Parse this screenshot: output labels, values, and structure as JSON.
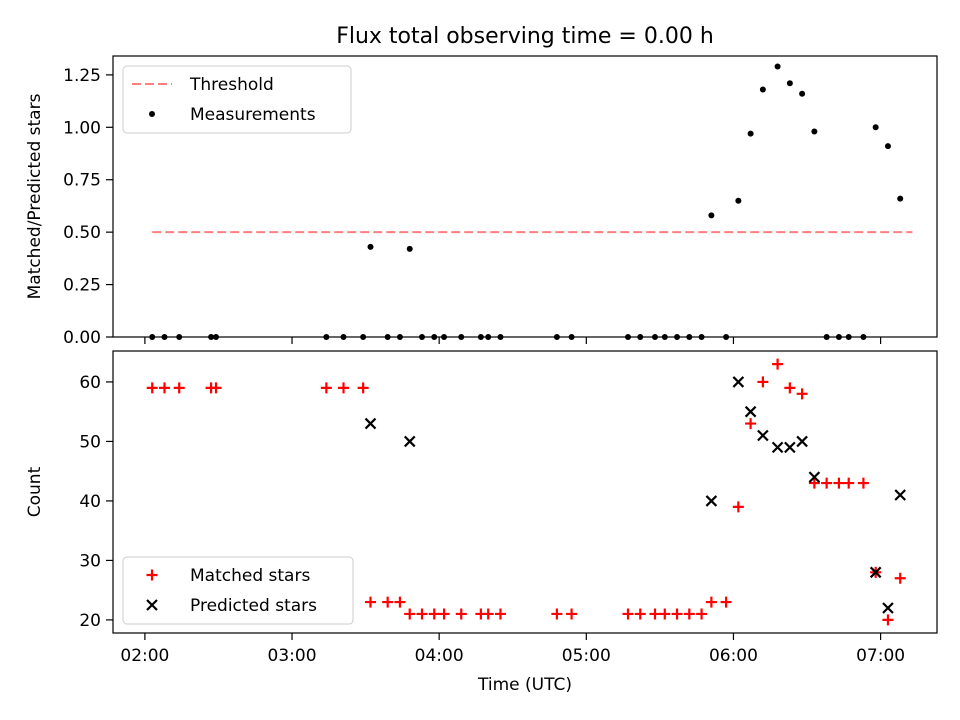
{
  "figure": {
    "title": "Flux total observing time = 0.00 h"
  },
  "chart_data": [
    {
      "type": "scatter",
      "panel": "top",
      "title": "Flux total observing time = 0.00 h",
      "xlabel": "",
      "ylabel": "Matched/Predicted stars",
      "xlim": [
        "01:47",
        "07:23"
      ],
      "ylim": [
        0,
        1.34
      ],
      "yticks": [
        0.0,
        0.25,
        0.5,
        0.75,
        1.0,
        1.25
      ],
      "ytick_labels": [
        "0.00",
        "0.25",
        "0.50",
        "0.75",
        "1.00",
        "1.25"
      ],
      "legend": {
        "placement": "top-left",
        "entries": [
          "Threshold",
          "Measurements"
        ]
      },
      "threshold": {
        "name": "Threshold",
        "value": 0.5,
        "x_range": [
          "02:03",
          "07:13"
        ],
        "color": "#ff7f7f",
        "style": "dashed"
      },
      "series": [
        {
          "name": "Measurements",
          "color": "#000000",
          "marker": "dot",
          "points": [
            [
              "02:03",
              0
            ],
            [
              "02:08",
              0
            ],
            [
              "02:14",
              0
            ],
            [
              "02:27",
              0
            ],
            [
              "02:29",
              0
            ],
            [
              "03:14",
              0
            ],
            [
              "03:21",
              0
            ],
            [
              "03:29",
              0
            ],
            [
              "03:32",
              0.43
            ],
            [
              "03:39",
              0
            ],
            [
              "03:44",
              0
            ],
            [
              "03:48",
              0.42
            ],
            [
              "03:53",
              0
            ],
            [
              "03:58",
              0
            ],
            [
              "04:02",
              0
            ],
            [
              "04:09",
              0
            ],
            [
              "04:17",
              0
            ],
            [
              "04:20",
              0
            ],
            [
              "04:25",
              0
            ],
            [
              "04:48",
              0
            ],
            [
              "04:54",
              0
            ],
            [
              "05:17",
              0
            ],
            [
              "05:22",
              0
            ],
            [
              "05:28",
              0
            ],
            [
              "05:32",
              0
            ],
            [
              "05:37",
              0
            ],
            [
              "05:42",
              0
            ],
            [
              "05:47",
              0
            ],
            [
              "05:51",
              0.58
            ],
            [
              "05:57",
              0
            ],
            [
              "06:02",
              0.65
            ],
            [
              "06:07",
              0.97
            ],
            [
              "06:12",
              1.18
            ],
            [
              "06:18",
              1.29
            ],
            [
              "06:23",
              1.21
            ],
            [
              "06:28",
              1.16
            ],
            [
              "06:33",
              0.98
            ],
            [
              "06:38",
              0
            ],
            [
              "06:43",
              0
            ],
            [
              "06:47",
              0
            ],
            [
              "06:53",
              0
            ],
            [
              "06:58",
              1.0
            ],
            [
              "07:03",
              0.91
            ],
            [
              "07:08",
              0.66
            ]
          ]
        }
      ]
    },
    {
      "type": "scatter",
      "panel": "bottom",
      "title": "",
      "xlabel": "Time (UTC)",
      "ylabel": "Count",
      "xlim": [
        "01:47",
        "07:23"
      ],
      "ylim": [
        17.8,
        65.2
      ],
      "xticks": [
        "02:00",
        "03:00",
        "04:00",
        "05:00",
        "06:00",
        "07:00"
      ],
      "yticks": [
        20,
        30,
        40,
        50,
        60
      ],
      "legend": {
        "placement": "bottom-left",
        "entries": [
          "Matched stars",
          "Predicted stars"
        ]
      },
      "series": [
        {
          "name": "Matched stars",
          "color": "#ff0000",
          "marker": "plus",
          "points": [
            [
              "02:03",
              59
            ],
            [
              "02:08",
              59
            ],
            [
              "02:14",
              59
            ],
            [
              "02:27",
              59
            ],
            [
              "02:29",
              59
            ],
            [
              "03:14",
              59
            ],
            [
              "03:21",
              59
            ],
            [
              "03:29",
              59
            ],
            [
              "03:32",
              23
            ],
            [
              "03:39",
              23
            ],
            [
              "03:44",
              23
            ],
            [
              "03:48",
              21
            ],
            [
              "03:53",
              21
            ],
            [
              "03:58",
              21
            ],
            [
              "04:02",
              21
            ],
            [
              "04:09",
              21
            ],
            [
              "04:17",
              21
            ],
            [
              "04:20",
              21
            ],
            [
              "04:25",
              21
            ],
            [
              "04:48",
              21
            ],
            [
              "04:54",
              21
            ],
            [
              "05:17",
              21
            ],
            [
              "05:22",
              21
            ],
            [
              "05:28",
              21
            ],
            [
              "05:32",
              21
            ],
            [
              "05:37",
              21
            ],
            [
              "05:42",
              21
            ],
            [
              "05:47",
              21
            ],
            [
              "05:51",
              23
            ],
            [
              "05:57",
              23
            ],
            [
              "06:02",
              39
            ],
            [
              "06:07",
              53
            ],
            [
              "06:12",
              60
            ],
            [
              "06:18",
              63
            ],
            [
              "06:23",
              59
            ],
            [
              "06:28",
              58
            ],
            [
              "06:33",
              43
            ],
            [
              "06:38",
              43
            ],
            [
              "06:43",
              43
            ],
            [
              "06:47",
              43
            ],
            [
              "06:53",
              43
            ],
            [
              "06:58",
              28
            ],
            [
              "07:03",
              20
            ],
            [
              "07:08",
              27
            ]
          ]
        },
        {
          "name": "Predicted stars",
          "color": "#000000",
          "marker": "x",
          "points": [
            [
              "03:32",
              53
            ],
            [
              "03:48",
              50
            ],
            [
              "05:51",
              40
            ],
            [
              "06:02",
              60
            ],
            [
              "06:07",
              55
            ],
            [
              "06:12",
              51
            ],
            [
              "06:18",
              49
            ],
            [
              "06:23",
              49
            ],
            [
              "06:28",
              50
            ],
            [
              "06:33",
              44
            ],
            [
              "06:58",
              28
            ],
            [
              "07:03",
              22
            ],
            [
              "07:08",
              41
            ]
          ]
        }
      ]
    }
  ]
}
